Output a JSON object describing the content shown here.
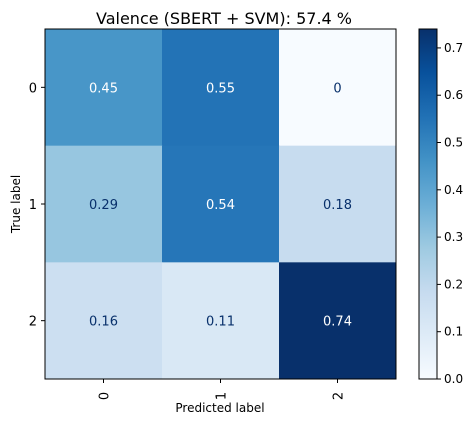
{
  "chart_data": {
    "type": "heatmap",
    "title": "Valence (SBERT + SVM): 57.4 %",
    "xlabel": "Predicted label",
    "ylabel": "True label",
    "x_categories": [
      "0",
      "1",
      "2"
    ],
    "y_categories": [
      "0",
      "1",
      "2"
    ],
    "values": [
      [
        0.45,
        0.55,
        0
      ],
      [
        0.29,
        0.54,
        0.18
      ],
      [
        0.16,
        0.11,
        0.74
      ]
    ],
    "cell_labels": [
      [
        "0.45",
        "0.55",
        "0"
      ],
      [
        "0.29",
        "0.54",
        "0.18"
      ],
      [
        "0.16",
        "0.11",
        "0.74"
      ]
    ],
    "colormap": "Blues",
    "colorbar": {
      "range": [
        0,
        0.74
      ],
      "ticks": [
        0.0,
        0.1,
        0.2,
        0.3,
        0.4,
        0.5,
        0.6,
        0.7
      ],
      "tick_labels": [
        "0.0",
        "0.1",
        "0.2",
        "0.3",
        "0.4",
        "0.5",
        "0.6",
        "0.7"
      ]
    },
    "grid": false,
    "colors": {
      "text_on_dark": "#ffffff",
      "text_on_light": "#08306b"
    }
  }
}
